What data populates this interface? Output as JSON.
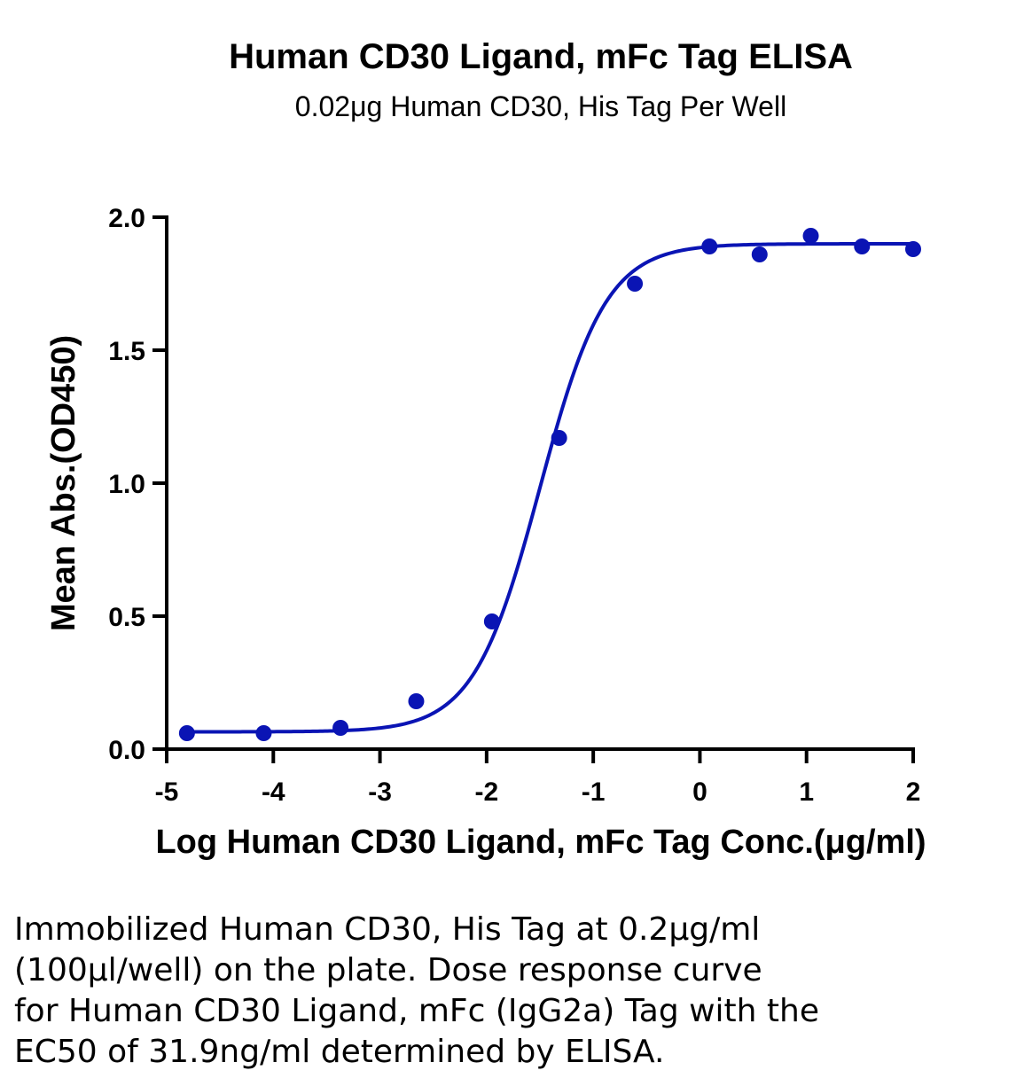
{
  "chart_data": {
    "type": "scatter",
    "title": "Human CD30 Ligand, mFc Tag ELISA",
    "subtitle": "0.02μg Human CD30, His Tag Per Well",
    "xlabel": "Log Human CD30 Ligand, mFc Tag Conc.(μg/ml)",
    "ylabel": "Mean Abs.(OD450)",
    "xlim": [
      -5,
      2
    ],
    "ylim": [
      0,
      2.0
    ],
    "x_ticks": [
      "-5",
      "-4",
      "-3",
      "-2",
      "-1",
      "0",
      "1",
      "2"
    ],
    "y_ticks": [
      "0.0",
      "0.5",
      "1.0",
      "1.5",
      "2.0"
    ],
    "x_tick_values": [
      -5,
      -4,
      -3,
      -2,
      -1,
      0,
      1,
      2
    ],
    "y_tick_values": [
      0,
      0.5,
      1.0,
      1.5,
      2.0
    ],
    "color": "#0a14b4",
    "series": [
      {
        "points": [
          {
            "x": -4.81,
            "y": 0.06
          },
          {
            "x": -4.09,
            "y": 0.06
          },
          {
            "x": -3.37,
            "y": 0.08
          },
          {
            "x": -2.66,
            "y": 0.18
          },
          {
            "x": -1.95,
            "y": 0.48
          },
          {
            "x": -1.32,
            "y": 1.17
          },
          {
            "x": -0.61,
            "y": 1.75
          },
          {
            "x": 0.09,
            "y": 1.89
          },
          {
            "x": 0.56,
            "y": 1.86
          },
          {
            "x": 1.04,
            "y": 1.93
          },
          {
            "x": 1.52,
            "y": 1.89
          },
          {
            "x": 2.0,
            "y": 1.88
          }
        ],
        "fit": {
          "model": "4PL",
          "bottom": 0.065,
          "top": 1.9,
          "log_ec50": -1.5,
          "hill": 1.4
        }
      }
    ]
  },
  "caption": {
    "lines": [
      "Immobilized Human CD30, His Tag at 0.2μg/ml",
      "(100μl/well) on the plate. Dose response curve",
      "for Human CD30 Ligand, mFc (IgG2a) Tag with the",
      "EC50 of 31.9ng/ml determined by ELISA."
    ]
  }
}
